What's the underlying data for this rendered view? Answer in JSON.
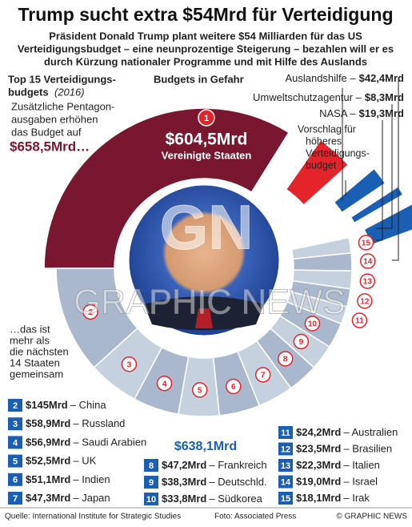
{
  "title": "Trump sucht extra $54Mrd für Verteidigung",
  "subtitle": [
    "Präsident Donald Trump plant weitere $54 Milliarden für das US",
    "Verteidigungsbudget – eine neunprozentige Steigerung – bezahlen will er es",
    "durch Kürzung nationaler Programme und mit Hilfe des Auslands"
  ],
  "top_label": {
    "lines": [
      "Top 15 Verteidigungs-",
      "budgets"
    ],
    "year": "(2016)"
  },
  "pentagon": {
    "lines": [
      "Zusätzliche Pentagon-",
      "ausgaben erhöhen",
      "das Budget auf"
    ],
    "total": "$658,5Mrd…"
  },
  "budgets_heading": "Budgets in Gefahr",
  "cuts": [
    {
      "name": "Auslandshilfe –",
      "amount": "$42,4Mrd"
    },
    {
      "name": "Umweltschutzagentur –",
      "amount": "$8,3Mrd"
    },
    {
      "name": "NASA –",
      "amount": "$19,3Mrd"
    }
  ],
  "proposal": [
    "Vorschlag für",
    "höheres",
    "Verteidigungs-",
    "budget"
  ],
  "extra": "$54Mrd",
  "usa": {
    "rank": "1",
    "amount": "$604,5Mrd",
    "name": "Vereinigte Staaten"
  },
  "others_note": [
    "…das ist",
    "mehr als",
    "die nächsten",
    "14 Staaten",
    "gemeinsam"
  ],
  "others_total": "$638,1Mrd",
  "countries": [
    {
      "rank": "2",
      "amount": "$145Mrd",
      "name": "– China"
    },
    {
      "rank": "3",
      "amount": "$58,9Mrd",
      "name": "– Russland"
    },
    {
      "rank": "4",
      "amount": "$56,9Mrd",
      "name": "– Saudi Arabien"
    },
    {
      "rank": "5",
      "amount": "$52,5Mrd",
      "name": "– UK"
    },
    {
      "rank": "6",
      "amount": "$51,1Mrd",
      "name": "– Indien"
    },
    {
      "rank": "7",
      "amount": "$47,3Mrd",
      "name": "– Japan"
    },
    {
      "rank": "8",
      "amount": "$47,2Mrd",
      "name": "– Frankreich"
    },
    {
      "rank": "9",
      "amount": "$38,3Mrd",
      "name": "– Deutschld."
    },
    {
      "rank": "10",
      "amount": "$33,8Mrd",
      "name": "– Südkorea"
    },
    {
      "rank": "11",
      "amount": "$24,2Mrd",
      "name": "– Australien"
    },
    {
      "rank": "12",
      "amount": "$23,5Mrd",
      "name": "– Brasilien"
    },
    {
      "rank": "13",
      "amount": "$22,3Mrd",
      "name": "– Italien"
    },
    {
      "rank": "14",
      "amount": "$19,0Mrd",
      "name": "– Israel"
    },
    {
      "rank": "15",
      "amount": "$18,1Mrd",
      "name": "– Irak"
    }
  ],
  "watermark": {
    "logo": "GN",
    "name": "GRAPHIC NEWS"
  },
  "footer": {
    "source": "Quelle: International Institute for Strategic Studies",
    "photo": "Foto: Associated Press",
    "copyright": "© GRAPHIC NEWS"
  }
}
